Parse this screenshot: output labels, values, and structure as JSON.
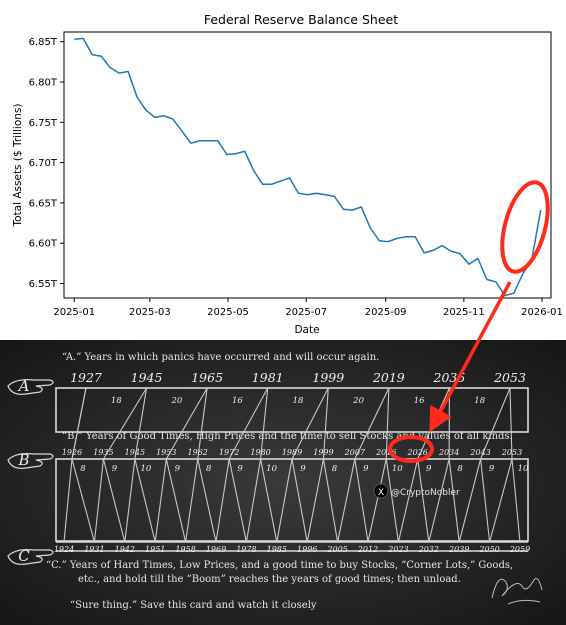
{
  "chart_data": {
    "type": "line",
    "title": "Federal Reserve Balance Sheet",
    "xlabel": "Date",
    "ylabel": "Total Assets ($ Trillions)",
    "xlim": [
      "2024-12-24",
      "2026-01-08"
    ],
    "ylim": [
      6.532,
      6.862
    ],
    "x_ticks": [
      "2025-01",
      "2025-03",
      "2025-05",
      "2025-07",
      "2025-09",
      "2025-11",
      "2026-01"
    ],
    "x_tick_dates": [
      "2025-01-01",
      "2025-03-01",
      "2025-05-01",
      "2025-07-01",
      "2025-09-01",
      "2025-11-01",
      "2026-01-01"
    ],
    "y_ticks": [
      6.55,
      6.6,
      6.65,
      6.7,
      6.75,
      6.8,
      6.85
    ],
    "y_tick_labels": [
      "6.55T",
      "6.60T",
      "6.65T",
      "6.70T",
      "6.75T",
      "6.80T",
      "6.85T"
    ],
    "grid": false,
    "color": "#1f77b4",
    "series": [
      {
        "x": [
          "2025-01-01",
          "2025-01-08",
          "2025-01-15",
          "2025-01-22",
          "2025-01-29",
          "2025-02-05",
          "2025-02-12",
          "2025-02-19",
          "2025-02-26",
          "2025-03-05",
          "2025-03-12",
          "2025-03-19",
          "2025-03-26",
          "2025-04-02",
          "2025-04-09",
          "2025-04-16",
          "2025-04-23",
          "2025-04-30",
          "2025-05-07",
          "2025-05-14",
          "2025-05-21",
          "2025-05-28",
          "2025-06-04",
          "2025-06-11",
          "2025-06-18",
          "2025-06-25",
          "2025-07-02",
          "2025-07-09",
          "2025-07-16",
          "2025-07-23",
          "2025-07-30",
          "2025-08-06",
          "2025-08-13",
          "2025-08-20",
          "2025-08-27",
          "2025-09-03",
          "2025-09-10",
          "2025-09-17",
          "2025-09-24",
          "2025-10-01",
          "2025-10-08",
          "2025-10-15",
          "2025-10-22",
          "2025-10-29",
          "2025-11-05",
          "2025-11-12",
          "2025-11-19",
          "2025-11-26",
          "2025-12-03",
          "2025-12-10",
          "2025-12-17",
          "2025-12-24",
          "2025-12-31"
        ],
        "y": [
          6.853,
          6.854,
          6.834,
          6.832,
          6.818,
          6.811,
          6.813,
          6.781,
          6.765,
          6.756,
          6.758,
          6.754,
          6.739,
          6.724,
          6.727,
          6.727,
          6.727,
          6.71,
          6.711,
          6.714,
          6.69,
          6.673,
          6.673,
          6.677,
          6.681,
          6.662,
          6.66,
          6.662,
          6.66,
          6.658,
          6.642,
          6.641,
          6.645,
          6.619,
          6.603,
          6.602,
          6.606,
          6.608,
          6.608,
          6.588,
          6.591,
          6.597,
          6.59,
          6.587,
          6.574,
          6.581,
          6.555,
          6.552,
          6.535,
          6.538,
          6.562,
          6.58,
          6.641
        ]
      }
    ]
  },
  "card": {
    "line_a": "“A.” Years in which panics have occurred and will occur again.",
    "line_b": "“B.” Years of Good Times, High Prices and the time to sell Stocks and values of all kinds.",
    "line_c1": "“C.”  Years of Hard Times, Low Prices, and a good time to buy Stocks, “Corner Lots,” Goods,",
    "line_c2": "etc., and hold till  the “Boom” reaches the years of good times; then unload.",
    "line_sure": "“Sure thing.” Save this card and watch it closely",
    "label_a": "A",
    "label_b": "B",
    "label_c": "C",
    "top_years": [
      "1927",
      "1945",
      "1965",
      "1981",
      "1999",
      "2019",
      "2035",
      "2053"
    ],
    "top_numbers": [
      "18",
      "20",
      "16",
      "18",
      "20",
      "16",
      "18"
    ],
    "middle_years": [
      "1926",
      "1935",
      "1945",
      "1953",
      "1962",
      "1972",
      "1980",
      "1989",
      "1999",
      "2007",
      "2016",
      "2026",
      "2034",
      "2043",
      "2053"
    ],
    "bottom_years": [
      "1924",
      "1931",
      "1942",
      "1951",
      "1958",
      "1969",
      "1978",
      "1985",
      "1996",
      "2005",
      "2012",
      "2023",
      "2032",
      "2039",
      "2050",
      "2059"
    ],
    "row_top_numbers": [
      "8",
      "9",
      "10",
      "9",
      "8",
      "9",
      "10",
      "9",
      "8",
      "9",
      "10",
      "9",
      "8",
      "9",
      "10"
    ],
    "watermark": "@CryptoNobler",
    "watermark_icon": "x-logo-icon",
    "annotation_color": "#ff2a1a"
  }
}
